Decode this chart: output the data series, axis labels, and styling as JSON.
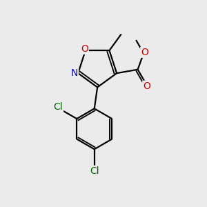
{
  "background_color": "#ebebeb",
  "bond_color": "#000000",
  "bond_width": 1.6,
  "atom_colors": {
    "O_red": "#cc0000",
    "N_blue": "#0000cc",
    "Cl_green": "#006600",
    "C_black": "#000000"
  },
  "font_size_atoms": 10,
  "figsize": [
    3.0,
    3.0
  ],
  "dpi": 100,
  "xlim": [
    0,
    10
  ],
  "ylim": [
    0,
    10
  ]
}
